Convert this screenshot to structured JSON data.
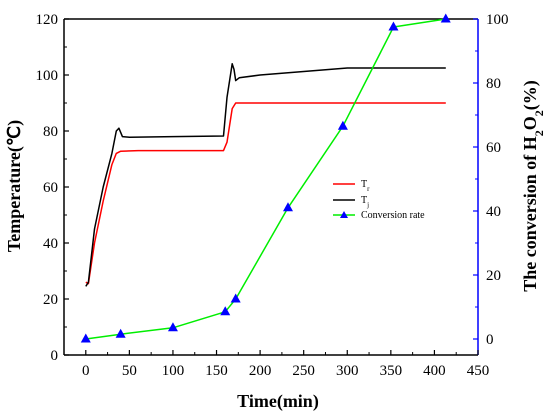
{
  "chart_data": {
    "type": "line",
    "xlabel": "Time(min)",
    "ylabel_left": "Temperature(℃)",
    "ylabel_right": "The conversion of H2O2(%)",
    "ylabel_right_parts": {
      "prefix": "The conversion of H",
      "sub1": "2",
      "mid": "O",
      "sub2": "2",
      "suffix": "(%)"
    },
    "xlim": [
      -25,
      450
    ],
    "ylim_left": [
      0,
      120
    ],
    "ylim_right": [
      -5,
      100
    ],
    "x_ticks": [
      0,
      50,
      100,
      150,
      200,
      250,
      300,
      350,
      400,
      450
    ],
    "y_left_ticks": [
      0,
      20,
      40,
      60,
      80,
      100,
      120
    ],
    "y_right_ticks": [
      0,
      20,
      40,
      60,
      80,
      100
    ],
    "colors": {
      "axis_left": "#000000",
      "axis_right": "#0000ff",
      "tr": "#ff0000",
      "tj": "#000000",
      "conversion": "#00ee00",
      "marker": "#0000ff"
    },
    "legend_position": "center-right",
    "grid": false,
    "series": [
      {
        "name": "Tr",
        "legend_main": "T",
        "legend_sub": "r",
        "axis": "left",
        "x": [
          0,
          3,
          10,
          20,
          30,
          35,
          40,
          60,
          100,
          158,
          162,
          165,
          168,
          172,
          200,
          300,
          413
        ],
        "y": [
          26,
          25.5,
          40,
          55,
          68,
          72,
          72.8,
          73,
          73,
          73,
          76,
          82,
          88,
          90,
          90,
          90,
          90
        ]
      },
      {
        "name": "Tj",
        "legend_main": "T",
        "legend_sub": "j",
        "axis": "left",
        "x": [
          0,
          3,
          10,
          20,
          30,
          35,
          38,
          42,
          50,
          100,
          158,
          162,
          165,
          168,
          170,
          172,
          176,
          200,
          300,
          413
        ],
        "y": [
          24.5,
          26,
          45,
          60,
          72,
          80,
          81,
          78,
          77.8,
          78,
          78.2,
          92,
          98,
          104,
          102,
          98,
          99,
          100,
          102.5,
          102.5
        ]
      },
      {
        "name": "Conversion rate",
        "axis": "right",
        "x": [
          0,
          40,
          100,
          160,
          172,
          232,
          295,
          353,
          413
        ],
        "y": [
          0,
          1.5,
          3.5,
          8.5,
          12.5,
          41,
          66.5,
          97.5,
          100
        ]
      }
    ]
  }
}
